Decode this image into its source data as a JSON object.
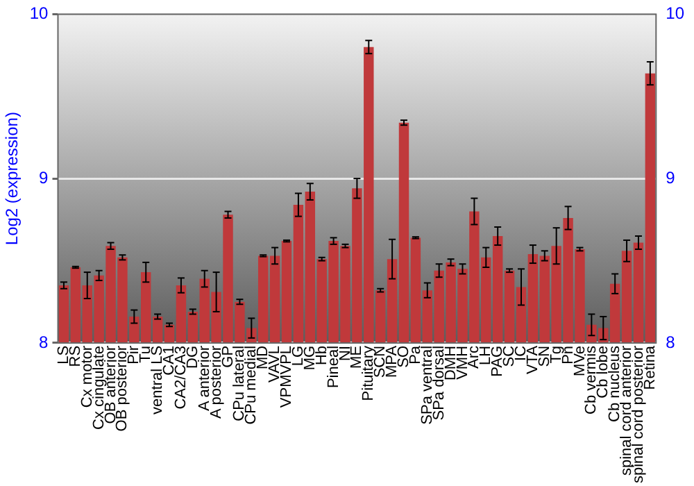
{
  "chart_data": {
    "type": "bar",
    "ylabel": "Log2 (expression)",
    "categories": [
      "LS",
      "RS",
      "Cx motor",
      "Cx cingulate",
      "OB anterior",
      "OB posterior",
      "Pir",
      "Tu",
      "ventral LS",
      "CA1",
      "CA2/CA3",
      "DG",
      "A anterior",
      "A posterior",
      "GP",
      "CPu lateral",
      "CPu medial",
      "MD",
      "VAVL",
      "VPMVPL",
      "LG",
      "MG",
      "Hb",
      "Pineal",
      "NI",
      "ME",
      "Pituitary",
      "SCN",
      "MPA",
      "SO",
      "Pa",
      "SPa ventral",
      "SPa dorsal",
      "DMH",
      "VMH",
      "Arc",
      "LH",
      "PAG",
      "SC",
      "IC",
      "VTA",
      "SN",
      "Tg",
      "Pn",
      "MVe",
      "Cb vermis",
      "Cb lobe",
      "Cb nucleus",
      "spinal cord anterior",
      "spinal cord posterior",
      "Retina"
    ],
    "values": [
      8.35,
      8.46,
      8.35,
      8.41,
      8.59,
      8.52,
      8.16,
      8.43,
      8.16,
      8.11,
      8.35,
      8.19,
      8.39,
      8.31,
      8.78,
      8.25,
      8.09,
      8.53,
      8.53,
      8.62,
      8.84,
      8.92,
      8.51,
      8.62,
      8.59,
      8.94,
      9.8,
      8.32,
      8.51,
      9.34,
      8.64,
      8.32,
      8.44,
      8.49,
      8.45,
      8.8,
      8.52,
      8.65,
      8.44,
      8.34,
      8.54,
      8.53,
      8.59,
      8.76,
      8.57,
      8.11,
      8.09,
      8.36,
      8.56,
      8.61,
      9.64
    ],
    "errors": [
      0.02,
      0.005,
      0.08,
      0.03,
      0.02,
      0.015,
      0.04,
      0.06,
      0.015,
      0.01,
      0.045,
      0.015,
      0.05,
      0.12,
      0.02,
      0.015,
      0.06,
      0.005,
      0.05,
      0.005,
      0.07,
      0.05,
      0.01,
      0.02,
      0.01,
      0.06,
      0.04,
      0.01,
      0.12,
      0.015,
      0.005,
      0.045,
      0.04,
      0.02,
      0.03,
      0.08,
      0.06,
      0.055,
      0.01,
      0.11,
      0.055,
      0.03,
      0.11,
      0.07,
      0.01,
      0.065,
      0.07,
      0.06,
      0.065,
      0.04,
      0.07
    ],
    "color": "#c0393b",
    "ylim": [
      8,
      10
    ],
    "yticks": [
      8,
      9,
      10
    ],
    "y2lim": [
      8,
      10
    ],
    "y2ticks": [
      8,
      9,
      10
    ],
    "grid": "y",
    "legend": false
  }
}
